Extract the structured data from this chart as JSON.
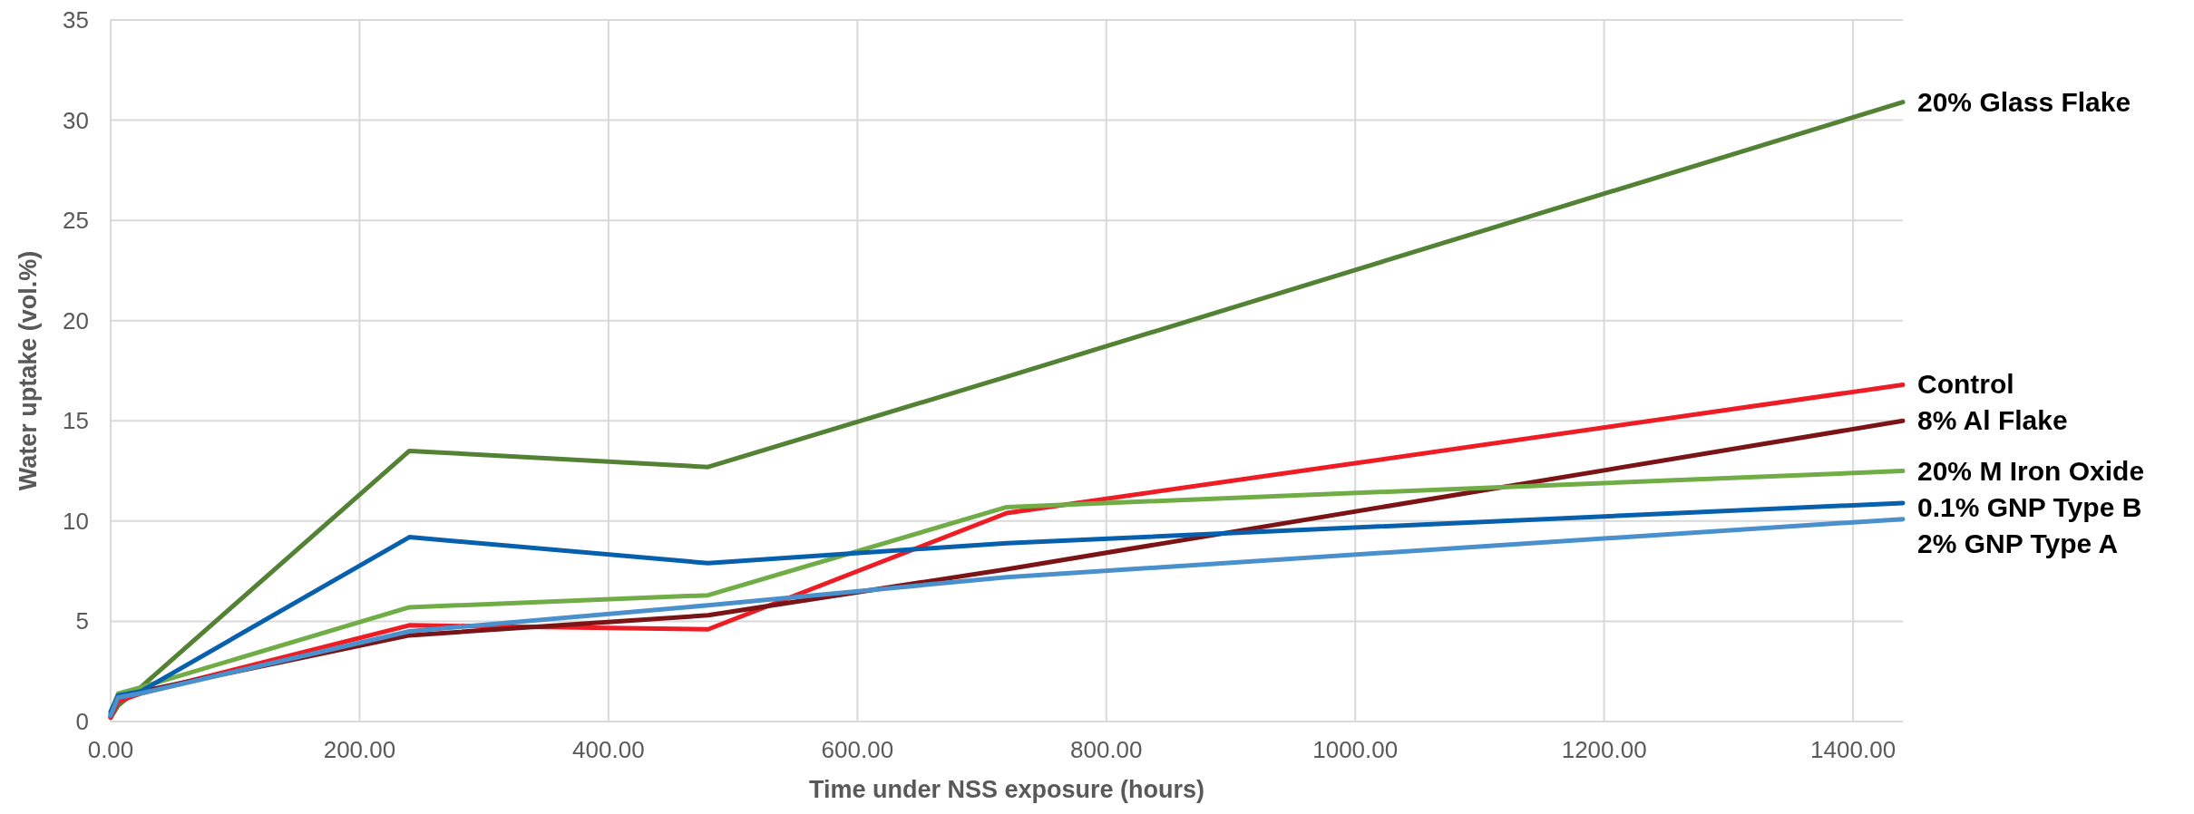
{
  "chart_data": {
    "type": "line",
    "xlabel": "Time under NSS exposure (hours)",
    "ylabel": "Water uptake (vol.%)",
    "x": [
      0,
      6,
      24,
      240,
      480,
      720,
      1440
    ],
    "xlim": [
      0,
      1440
    ],
    "xticks": [
      {
        "value": 0,
        "label": "0.00"
      },
      {
        "value": 200,
        "label": "200.00"
      },
      {
        "value": 400,
        "label": "400.00"
      },
      {
        "value": 600,
        "label": "600.00"
      },
      {
        "value": 800,
        "label": "800.00"
      },
      {
        "value": 1000,
        "label": "1000.00"
      },
      {
        "value": 1200,
        "label": "1200.00"
      },
      {
        "value": 1400,
        "label": "1400.00"
      }
    ],
    "ylim": [
      0,
      35
    ],
    "yticks": [
      0,
      5,
      10,
      15,
      20,
      25,
      30,
      35
    ],
    "grid": true,
    "marker": "none",
    "line_style": "solid",
    "series": [
      {
        "name": "20% Glass Flake",
        "color": "#548235",
        "values": [
          0.2,
          0.8,
          1.7,
          13.5,
          12.7,
          17.2,
          30.9
        ]
      },
      {
        "name": "Control",
        "color": "#ee1c25",
        "values": [
          0.2,
          1.0,
          1.4,
          4.8,
          4.6,
          10.4,
          16.8
        ]
      },
      {
        "name": "8% Al Flake",
        "color": "#7b1416",
        "values": [
          0.3,
          1.2,
          1.5,
          4.3,
          5.3,
          7.6,
          15.0
        ]
      },
      {
        "name": "20% M Iron Oxide",
        "color": "#70ad47",
        "values": [
          0.4,
          1.4,
          1.7,
          5.7,
          6.3,
          10.7,
          12.5
        ]
      },
      {
        "name": "0.1% GNP Type B",
        "color": "#0760ad",
        "values": [
          0.5,
          1.3,
          1.5,
          9.2,
          7.9,
          8.9,
          10.9
        ]
      },
      {
        "name": "2% GNP Type A",
        "color": "#4a90cc",
        "values": [
          0.3,
          1.2,
          1.4,
          4.5,
          5.8,
          7.2,
          10.1
        ]
      }
    ]
  }
}
